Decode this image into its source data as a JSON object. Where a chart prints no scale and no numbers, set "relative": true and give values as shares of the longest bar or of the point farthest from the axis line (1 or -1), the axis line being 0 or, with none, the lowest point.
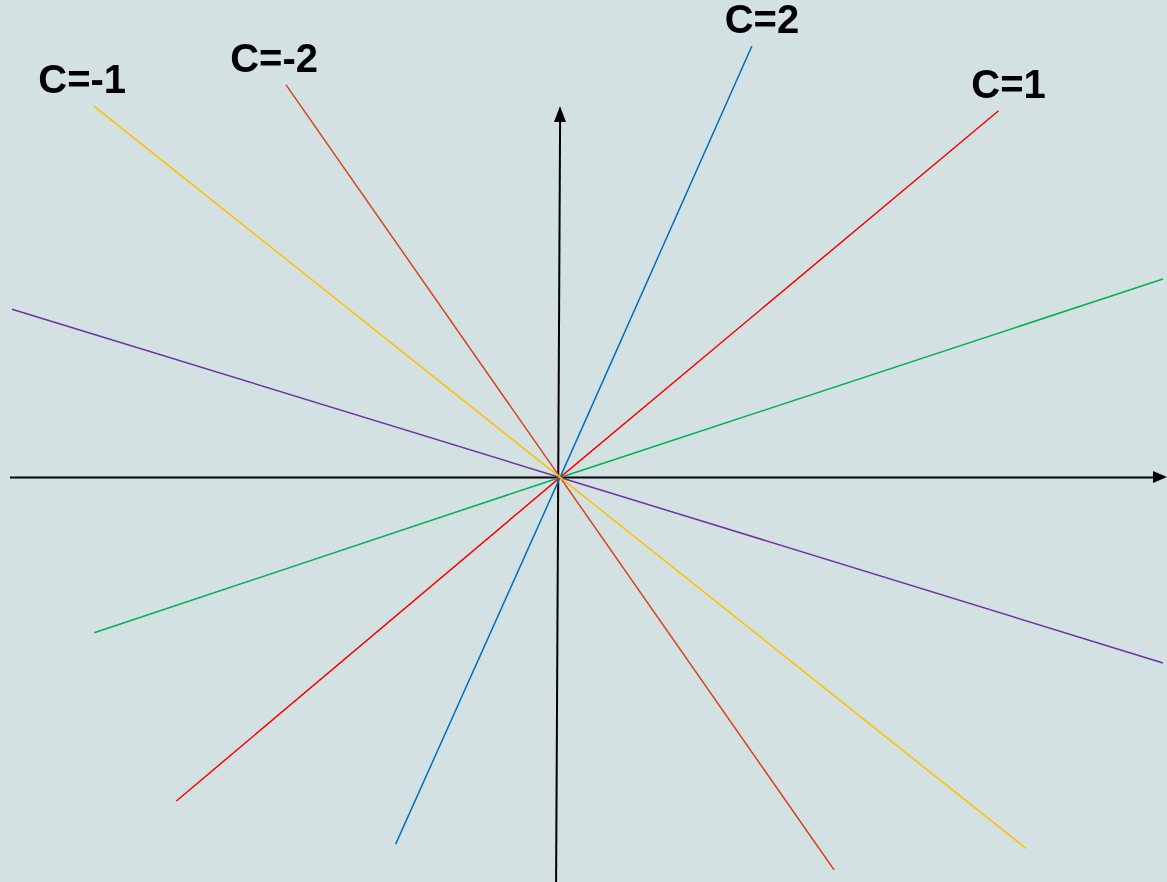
{
  "chart_data": {
    "type": "line",
    "relative": true,
    "legend": false,
    "grid": false,
    "categories": [
      null,
      null,
      null,
      null,
      null,
      null,
      null,
      null,
      null,
      null,
      null,
      null,
      null,
      null,
      null,
      null,
      null,
      null,
      null,
      null,
      null,
      null,
      null,
      null,
      null,
      null,
      null,
      null,
      null,
      null,
      null,
      null,
      null,
      null,
      null,
      null,
      null,
      null,
      null,
      null,
      null,
      null,
      null
    ],
    "series": [
      {
        "name": "C=-1",
        "color": "#ffc000",
        "values": [
          null,
          null,
          null,
          0.86,
          null,
          null,
          null,
          null,
          null,
          null,
          null,
          null,
          null,
          null,
          null,
          null,
          null,
          null,
          null,
          null,
          0,
          null,
          null,
          null,
          null,
          null,
          null,
          null,
          null,
          null,
          null,
          null,
          null,
          null,
          null,
          null,
          null,
          -0.86,
          null,
          null,
          null,
          null,
          null
        ]
      },
      {
        "name": "C=-2",
        "color": "#d9441c",
        "values": [
          null,
          null,
          null,
          null,
          null,
          null,
          null,
          null,
          null,
          null,
          0.91,
          null,
          null,
          null,
          null,
          null,
          null,
          null,
          null,
          null,
          0,
          null,
          null,
          null,
          null,
          null,
          null,
          null,
          null,
          null,
          -0.91,
          null,
          null,
          null,
          null,
          null,
          null,
          null,
          null,
          null,
          null,
          null,
          null
        ]
      },
      {
        "name": "C=2",
        "color": "#0070c0",
        "values": [
          null,
          null,
          null,
          null,
          null,
          null,
          null,
          null,
          null,
          null,
          null,
          null,
          null,
          null,
          -0.85,
          null,
          null,
          null,
          null,
          null,
          0,
          null,
          null,
          null,
          null,
          null,
          null,
          1,
          null,
          null,
          null,
          null,
          null,
          null,
          null,
          null,
          null,
          null,
          null,
          null,
          null,
          null,
          null
        ]
      },
      {
        "name": "C=1",
        "color": "#ff0000",
        "values": [
          null,
          null,
          null,
          null,
          null,
          null,
          -0.75,
          null,
          null,
          null,
          null,
          null,
          null,
          null,
          null,
          null,
          null,
          null,
          null,
          null,
          0,
          null,
          null,
          null,
          null,
          null,
          null,
          null,
          null,
          null,
          null,
          null,
          null,
          null,
          null,
          null,
          0.85,
          null,
          null,
          null,
          null,
          null,
          null
        ]
      },
      {
        "color": "#00b050",
        "values": [
          null,
          null,
          null,
          -0.36,
          null,
          null,
          null,
          null,
          null,
          null,
          null,
          null,
          null,
          null,
          null,
          null,
          null,
          null,
          null,
          null,
          0,
          null,
          null,
          null,
          null,
          null,
          null,
          null,
          null,
          null,
          null,
          null,
          null,
          null,
          null,
          null,
          null,
          null,
          null,
          null,
          null,
          null,
          0.46
        ]
      },
      {
        "color": "#7030a0",
        "values": [
          0.39,
          null,
          null,
          null,
          null,
          null,
          null,
          null,
          null,
          null,
          null,
          null,
          null,
          null,
          null,
          null,
          null,
          null,
          null,
          null,
          0,
          null,
          null,
          null,
          null,
          null,
          null,
          null,
          null,
          null,
          null,
          null,
          null,
          null,
          null,
          null,
          null,
          null,
          null,
          null,
          null,
          null,
          -0.43
        ]
      }
    ]
  }
}
